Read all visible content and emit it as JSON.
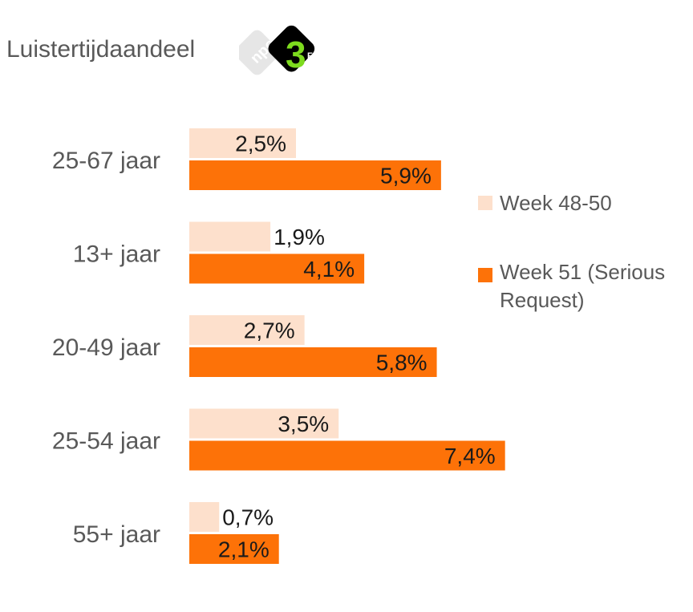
{
  "title": "Luistertijdaandeel",
  "logo": {
    "name": "npo-3fm-logo",
    "npo_text": "npo",
    "station_text": "3",
    "station_suffix": "FM",
    "colors": {
      "npo_bg": "#e6e6e6",
      "badge_bg": "#000000",
      "accent": "#7ddb1e"
    }
  },
  "colors": {
    "series_a": "#fde0cc",
    "series_b": "#fd7208",
    "label": "#595959",
    "value": "#1a1a1a"
  },
  "chart_data": {
    "type": "bar",
    "orientation": "horizontal",
    "categories": [
      "25-67 jaar",
      "13+ jaar",
      "20-49 jaar",
      "25-54 jaar",
      "55+ jaar"
    ],
    "series": [
      {
        "name": "Week 48-50",
        "values": [
          2.5,
          1.9,
          2.7,
          3.5,
          0.7
        ],
        "labels": [
          "2,5%",
          "1,9%",
          "2,7%",
          "3,5%",
          "0,7%"
        ]
      },
      {
        "name": "Week 51 (Serious Request)",
        "values": [
          5.9,
          4.1,
          5.8,
          7.4,
          2.1
        ],
        "labels": [
          "5,9%",
          "4,1%",
          "5,8%",
          "7,4%",
          "2,1%"
        ]
      }
    ],
    "legend": {
      "position": "right",
      "entries": [
        "Week 48-50",
        "Week 51 (Serious Request)"
      ]
    },
    "grid": false
  }
}
